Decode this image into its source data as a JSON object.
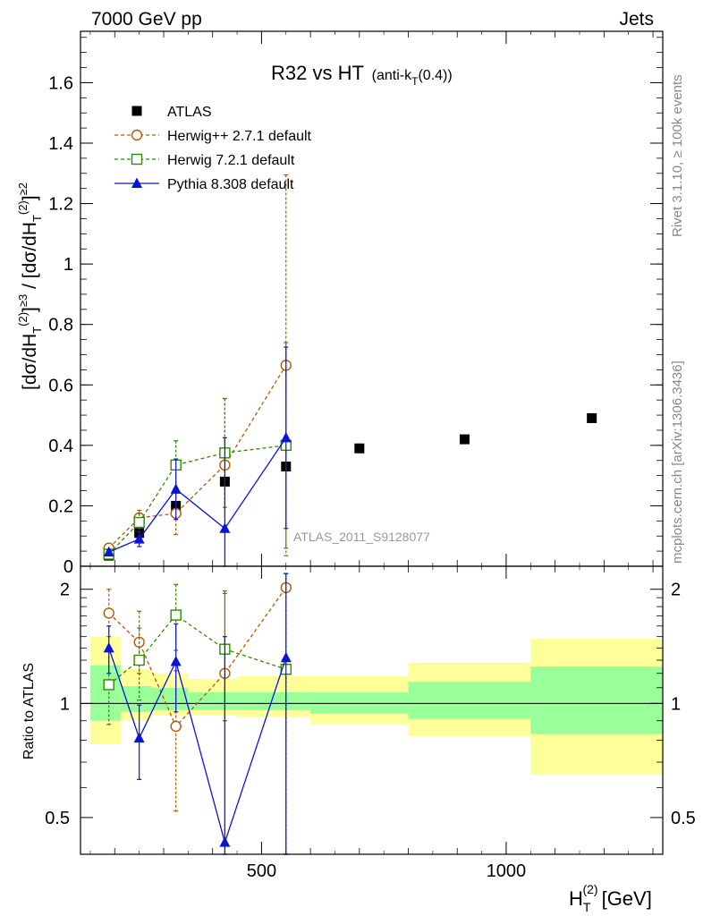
{
  "header": {
    "left": "7000 GeV pp",
    "right": "Jets"
  },
  "title": {
    "main": "R32 vs HT",
    "sub_prefix": "(anti-k",
    "sub_index": "T",
    "sub_suffix": "(0.4))"
  },
  "side_labels": {
    "rivet": "Rivet 3.1.10, ≥ 100k events",
    "mcplots": "mcplots.cern.ch [arXiv:1306.3436]"
  },
  "watermark": "ATLAS_2011_S9128077",
  "colors": {
    "atlas": "#000000",
    "herwigpp": "#b35a00",
    "herwig7": "#2e8b00",
    "pythia": "#0a14d8",
    "band_yellow": "#ffff99",
    "band_green": "#99ff99"
  },
  "axes": {
    "ylabel_top": "[dσ/dH_T^(2)]^{≥3} / [dσ/dH_T^(2)]^{≥2}",
    "ylabel_bottom": "Ratio to ATLAS",
    "xlabel": "H_T^(2) [GeV]"
  },
  "chart_data": {
    "type": "scatter",
    "title": "R32 vs HT (anti-kT(0.4))",
    "xlabel": "H_T^(2) [GeV]",
    "xlim": [
      130,
      1320
    ],
    "x_ticks": [
      500,
      1000
    ],
    "legend_position": "top-left",
    "main_panel": {
      "ylabel": "[dσ/dH_T^(2)]^{≥3} / [dσ/dH_T^(2)]^{≥2}",
      "ylim": [
        0,
        1.77
      ],
      "y_ticks": [
        0,
        0.2,
        0.4,
        0.6,
        0.8,
        1,
        1.2,
        1.4,
        1.6
      ],
      "series": [
        {
          "name": "ATLAS",
          "style": "data",
          "marker": "square-filled",
          "color": "#000000",
          "x": [
            188,
            250,
            325,
            425,
            550,
            700,
            915,
            1175
          ],
          "y": [
            0.035,
            0.11,
            0.2,
            0.28,
            0.33,
            0.39,
            0.42,
            0.49
          ]
        },
        {
          "name": "Herwig++ 2.7.1 default",
          "style": "dashed",
          "marker": "circle-open",
          "color": "#b35a00",
          "x": [
            188,
            250,
            325,
            425,
            550
          ],
          "y": [
            0.06,
            0.16,
            0.175,
            0.335,
            0.665
          ],
          "err": [
            0.008,
            0.025,
            0.07,
            0.22,
            0.63
          ]
        },
        {
          "name": "Herwig 7.2.1 default",
          "style": "dashed",
          "marker": "square-open",
          "color": "#2e8b00",
          "x": [
            188,
            250,
            325,
            425,
            550
          ],
          "y": [
            0.04,
            0.145,
            0.335,
            0.375,
            0.4
          ],
          "err": [
            0.007,
            0.03,
            0.08,
            0.18,
            0.34
          ]
        },
        {
          "name": "Pythia 8.308 default",
          "style": "solid",
          "marker": "triangle-filled",
          "color": "#0a14d8",
          "x": [
            188,
            250,
            325,
            425,
            550
          ],
          "y": [
            0.047,
            0.09,
            0.255,
            0.125,
            0.425
          ],
          "err": [
            0.007,
            0.025,
            0.1,
            0.3,
            0.3
          ]
        }
      ]
    },
    "ratio_panel": {
      "ylabel": "Ratio to ATLAS",
      "ylim": [
        0.4,
        2.3
      ],
      "scale": "log",
      "y_ticks": [
        0.5,
        1,
        2
      ],
      "bands": [
        {
          "xlo": 150,
          "xhi": 212,
          "y_lo": 0.78,
          "y_hi": 1.5,
          "g_lo": 0.9,
          "g_hi": 1.26
        },
        {
          "xlo": 212,
          "xhi": 275,
          "y_lo": 0.9,
          "y_hi": 1.23,
          "g_lo": 0.95,
          "g_hi": 1.11
        },
        {
          "xlo": 275,
          "xhi": 350,
          "y_lo": 0.93,
          "y_hi": 1.2,
          "g_lo": 0.96,
          "g_hi": 1.1
        },
        {
          "xlo": 350,
          "xhi": 450,
          "y_lo": 0.93,
          "y_hi": 1.16,
          "g_lo": 0.96,
          "g_hi": 1.07
        },
        {
          "xlo": 450,
          "xhi": 600,
          "y_lo": 0.92,
          "y_hi": 1.18,
          "g_lo": 0.96,
          "g_hi": 1.07
        },
        {
          "xlo": 600,
          "xhi": 800,
          "y_lo": 0.88,
          "y_hi": 1.18,
          "g_lo": 0.94,
          "g_hi": 1.07
        },
        {
          "xlo": 800,
          "xhi": 1050,
          "y_lo": 0.82,
          "y_hi": 1.28,
          "g_lo": 0.91,
          "g_hi": 1.14
        },
        {
          "xlo": 1050,
          "xhi": 1320,
          "y_lo": 0.65,
          "y_hi": 1.48,
          "g_lo": 0.83,
          "g_hi": 1.25
        }
      ],
      "series": [
        {
          "name": "Herwig++ 2.7.1 default",
          "color": "#b35a00",
          "style": "dashed",
          "marker": "circle-open",
          "x": [
            188,
            250,
            325,
            425,
            550
          ],
          "y": [
            1.73,
            1.45,
            0.87,
            1.2,
            2.02
          ],
          "lo": [
            1.5,
            1.2,
            0.52,
            0.4,
            0.4
          ],
          "hi": [
            2.0,
            1.75,
            1.22,
            1.98,
            2.2
          ]
        },
        {
          "name": "Herwig 7.2.1 default",
          "color": "#2e8b00",
          "style": "dashed",
          "marker": "square-open",
          "x": [
            188,
            250,
            325,
            425,
            550
          ],
          "y": [
            1.12,
            1.3,
            1.71,
            1.39,
            1.23
          ],
          "lo": [
            0.88,
            1.02,
            1.38,
            0.9,
            0.4
          ],
          "hi": [
            1.37,
            1.58,
            2.06,
            1.95,
            2.2
          ]
        },
        {
          "name": "Pythia 8.308 default",
          "color": "#0a14d8",
          "style": "solid",
          "marker": "triangle-filled",
          "x": [
            188,
            250,
            325,
            425,
            550
          ],
          "y": [
            1.4,
            0.81,
            1.29,
            0.43,
            1.32
          ],
          "lo": [
            1.2,
            0.63,
            0.95,
            0.4,
            0.4
          ],
          "hi": [
            1.6,
            0.99,
            1.62,
            1.5,
            2.2
          ]
        }
      ]
    }
  }
}
